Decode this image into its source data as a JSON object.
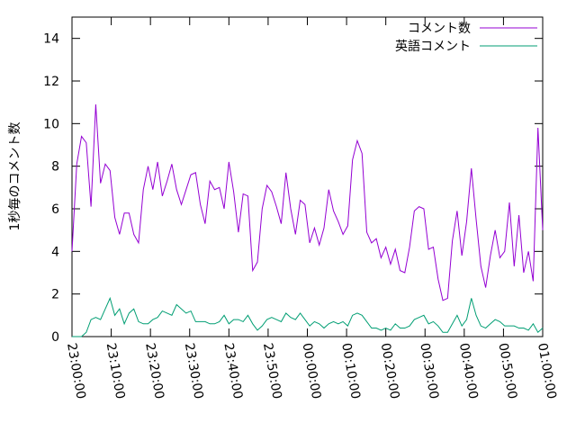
{
  "chart_data": {
    "type": "line",
    "ylabel": "1秒毎のコメント数",
    "xlabel": "",
    "title": "",
    "ylim": [
      0,
      15
    ],
    "yticks": [
      0,
      2,
      4,
      6,
      8,
      10,
      12,
      14
    ],
    "xticks": [
      "23:00:00",
      "23:10:00",
      "23:20:00",
      "23:30:00",
      "23:40:00",
      "23:50:00",
      "00:00:00",
      "00:10:00",
      "00:20:00",
      "00:30:00",
      "00:40:00",
      "00:50:00",
      "01:00:00"
    ],
    "x_start": "23:00:00",
    "x_end": "01:00:00",
    "x_step_seconds": 60,
    "legend_position": "top-right",
    "grid": false,
    "series": [
      {
        "name": "コメント数",
        "color": "#9400d3",
        "values": [
          4.0,
          8.1,
          9.4,
          9.1,
          6.1,
          10.9,
          7.2,
          8.1,
          7.8,
          5.6,
          4.8,
          5.8,
          5.8,
          4.8,
          4.4,
          6.9,
          8.0,
          6.9,
          8.2,
          6.6,
          7.3,
          8.1,
          6.9,
          6.2,
          6.9,
          7.6,
          7.7,
          6.2,
          5.3,
          7.3,
          6.9,
          7.0,
          6.0,
          8.2,
          6.8,
          4.9,
          6.7,
          6.6,
          3.1,
          3.5,
          6.0,
          7.1,
          6.8,
          6.1,
          5.3,
          7.7,
          6.0,
          4.8,
          6.4,
          6.2,
          4.4,
          5.1,
          4.3,
          5.1,
          6.9,
          5.9,
          5.4,
          4.8,
          5.2,
          8.3,
          9.2,
          8.6,
          4.9,
          4.4,
          4.6,
          3.7,
          4.2,
          3.4,
          4.1,
          3.1,
          3.0,
          4.2,
          5.9,
          6.1,
          6.0,
          4.1,
          4.2,
          2.7,
          1.7,
          1.8,
          4.5,
          5.9,
          3.8,
          5.4,
          7.9,
          5.5,
          3.3,
          2.3,
          3.8,
          5.0,
          3.7,
          4.0,
          6.3,
          3.3,
          5.7,
          3.0,
          4.0,
          2.6,
          9.8,
          5.0
        ]
      },
      {
        "name": "英語コメント",
        "color": "#009e73",
        "values": [
          0.0,
          0.0,
          0.0,
          0.2,
          0.8,
          0.9,
          0.8,
          1.3,
          1.8,
          1.0,
          1.3,
          0.6,
          1.1,
          1.3,
          0.7,
          0.6,
          0.6,
          0.8,
          0.9,
          1.2,
          1.1,
          1.0,
          1.5,
          1.3,
          1.1,
          1.2,
          0.7,
          0.7,
          0.7,
          0.6,
          0.6,
          0.7,
          1.0,
          0.6,
          0.8,
          0.8,
          0.7,
          1.0,
          0.6,
          0.3,
          0.5,
          0.8,
          0.9,
          0.8,
          0.7,
          1.1,
          0.9,
          0.8,
          1.1,
          0.8,
          0.5,
          0.7,
          0.6,
          0.4,
          0.6,
          0.7,
          0.6,
          0.7,
          0.5,
          1.0,
          1.1,
          1.0,
          0.7,
          0.4,
          0.4,
          0.3,
          0.4,
          0.3,
          0.6,
          0.4,
          0.4,
          0.5,
          0.8,
          0.9,
          1.0,
          0.6,
          0.7,
          0.5,
          0.2,
          0.2,
          0.6,
          1.0,
          0.5,
          0.8,
          1.8,
          1.0,
          0.5,
          0.4,
          0.6,
          0.8,
          0.7,
          0.5,
          0.5,
          0.5,
          0.4,
          0.4,
          0.3,
          0.6,
          0.2,
          0.4
        ]
      }
    ]
  }
}
